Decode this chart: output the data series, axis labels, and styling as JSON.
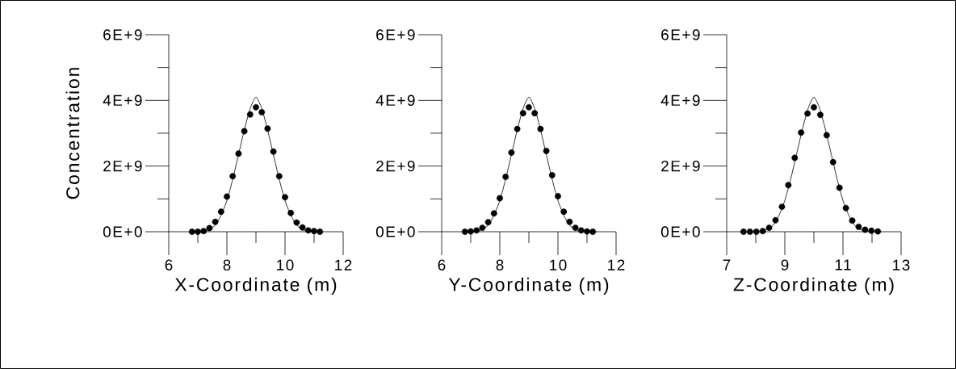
{
  "chart_data": [
    {
      "type": "scatter",
      "xlabel": "X-Coordinate (m)",
      "ylabel": "Concentration",
      "xlim": [
        6,
        12
      ],
      "ylim": [
        0,
        6000000000
      ],
      "xticks": [
        6,
        {
          "value": 7,
          "label": null
        },
        8,
        {
          "value": 9,
          "label": null
        },
        10,
        {
          "value": 11,
          "label": null
        },
        12
      ],
      "yticks": [
        {
          "value": 0,
          "label": "0E+0"
        },
        {
          "value": 1000000000,
          "label": null
        },
        {
          "value": 2000000000,
          "label": "2E+9"
        },
        {
          "value": 3000000000,
          "label": null
        },
        {
          "value": 4000000000,
          "label": "4E+9"
        },
        {
          "value": 5000000000,
          "label": null
        },
        {
          "value": 6000000000,
          "label": "6E+9"
        }
      ],
      "series": [
        {
          "type": "line",
          "color": "#000000",
          "x": [
            7.0,
            7.2,
            7.4,
            7.6,
            7.8,
            8.0,
            8.2,
            8.4,
            8.6,
            8.8,
            9.0,
            9.2,
            9.4,
            9.6,
            9.8,
            10.0,
            10.2,
            10.4,
            10.6,
            10.8,
            11.0
          ],
          "values": [
            0,
            20000000,
            70000000,
            200000000,
            500000000,
            950000000,
            1600000000,
            2350000000,
            3100000000,
            3750000000,
            4100000000,
            3750000000,
            3100000000,
            2350000000,
            1600000000,
            950000000,
            500000000,
            200000000,
            70000000,
            20000000,
            0
          ]
        },
        {
          "type": "scatter",
          "color": "#000000",
          "x": [
            6.8,
            7.0,
            7.2,
            7.4,
            7.6,
            7.8,
            8.0,
            8.2,
            8.4,
            8.6,
            8.8,
            9.0,
            9.2,
            9.4,
            9.6,
            9.8,
            10.0,
            10.2,
            10.4,
            10.6,
            10.8,
            11.0,
            11.2
          ],
          "values": [
            0,
            0,
            20000000,
            110000000,
            300000000,
            610000000,
            1070000000,
            1690000000,
            2380000000,
            3060000000,
            3570000000,
            3790000000,
            3640000000,
            3140000000,
            2440000000,
            1690000000,
            1050000000,
            570000000,
            280000000,
            130000000,
            40000000,
            20000000,
            0
          ]
        }
      ]
    },
    {
      "type": "scatter",
      "xlabel": "Y-Coordinate (m)",
      "xlim": [
        6,
        12
      ],
      "ylim": [
        0,
        6000000000
      ],
      "xticks": [
        6,
        {
          "value": 7,
          "label": null
        },
        8,
        {
          "value": 9,
          "label": null
        },
        10,
        {
          "value": 11,
          "label": null
        },
        12
      ],
      "yticks": [
        {
          "value": 0,
          "label": "0E+0"
        },
        {
          "value": 1000000000,
          "label": null
        },
        {
          "value": 2000000000,
          "label": "2E+9"
        },
        {
          "value": 3000000000,
          "label": null
        },
        {
          "value": 4000000000,
          "label": "4E+9"
        },
        {
          "value": 5000000000,
          "label": null
        },
        {
          "value": 6000000000,
          "label": "6E+9"
        }
      ],
      "series": [
        {
          "type": "line",
          "color": "#000000",
          "x": [
            7.0,
            7.2,
            7.4,
            7.6,
            7.8,
            8.0,
            8.2,
            8.4,
            8.6,
            8.8,
            9.0,
            9.2,
            9.4,
            9.6,
            9.8,
            10.0,
            10.2,
            10.4,
            10.6,
            10.8,
            11.0
          ],
          "values": [
            0,
            20000000,
            70000000,
            200000000,
            500000000,
            950000000,
            1600000000,
            2350000000,
            3100000000,
            3750000000,
            4100000000,
            3750000000,
            3100000000,
            2350000000,
            1600000000,
            950000000,
            500000000,
            200000000,
            70000000,
            20000000,
            0
          ]
        },
        {
          "type": "scatter",
          "color": "#000000",
          "x": [
            6.8,
            7.0,
            7.2,
            7.4,
            7.6,
            7.8,
            8.0,
            8.2,
            8.4,
            8.6,
            8.8,
            9.0,
            9.2,
            9.4,
            9.6,
            9.8,
            10.0,
            10.2,
            10.4,
            10.6,
            10.8,
            11.0,
            11.2
          ],
          "values": [
            0,
            10000000,
            40000000,
            120000000,
            290000000,
            560000000,
            1020000000,
            1670000000,
            2410000000,
            3130000000,
            3610000000,
            3790000000,
            3610000000,
            3130000000,
            2460000000,
            1720000000,
            1080000000,
            610000000,
            300000000,
            120000000,
            40000000,
            10000000,
            0
          ]
        }
      ]
    },
    {
      "type": "scatter",
      "xlabel": "Z-Coordinate (m)",
      "xlim": [
        7,
        13
      ],
      "ylim": [
        0,
        6000000000
      ],
      "xticks": [
        7,
        {
          "value": 8,
          "label": null
        },
        9,
        {
          "value": 10,
          "label": null
        },
        11,
        {
          "value": 12,
          "label": null
        },
        13
      ],
      "yticks": [
        {
          "value": 0,
          "label": "0E+0"
        },
        {
          "value": 1000000000,
          "label": null
        },
        {
          "value": 2000000000,
          "label": "2E+9"
        },
        {
          "value": 3000000000,
          "label": null
        },
        {
          "value": 4000000000,
          "label": "4E+9"
        },
        {
          "value": 5000000000,
          "label": null
        },
        {
          "value": 6000000000,
          "label": "6E+9"
        }
      ],
      "series": [
        {
          "type": "line",
          "color": "#000000",
          "x": [
            8.0,
            8.2,
            8.4,
            8.6,
            8.8,
            9.0,
            9.2,
            9.4,
            9.6,
            9.8,
            10.0,
            10.2,
            10.4,
            10.6,
            10.8,
            11.0,
            11.2,
            11.4,
            11.6,
            11.8,
            12.0
          ],
          "values": [
            0,
            20000000,
            70000000,
            200000000,
            500000000,
            950000000,
            1600000000,
            2350000000,
            3100000000,
            3750000000,
            4100000000,
            3750000000,
            3100000000,
            2350000000,
            1600000000,
            950000000,
            500000000,
            200000000,
            70000000,
            20000000,
            0
          ]
        },
        {
          "type": "scatter",
          "color": "#000000",
          "x": [
            7.58,
            7.8,
            8.02,
            8.24,
            8.46,
            8.68,
            8.9,
            9.12,
            9.34,
            9.56,
            9.78,
            10.0,
            10.22,
            10.44,
            10.66,
            10.88,
            11.1,
            11.32,
            11.54,
            11.76,
            11.98,
            12.2
          ],
          "values": [
            0,
            0,
            0,
            20000000,
            120000000,
            350000000,
            760000000,
            1420000000,
            2250000000,
            3020000000,
            3600000000,
            3790000000,
            3560000000,
            2940000000,
            2120000000,
            1340000000,
            720000000,
            340000000,
            150000000,
            60000000,
            30000000,
            10000000
          ]
        }
      ]
    }
  ]
}
